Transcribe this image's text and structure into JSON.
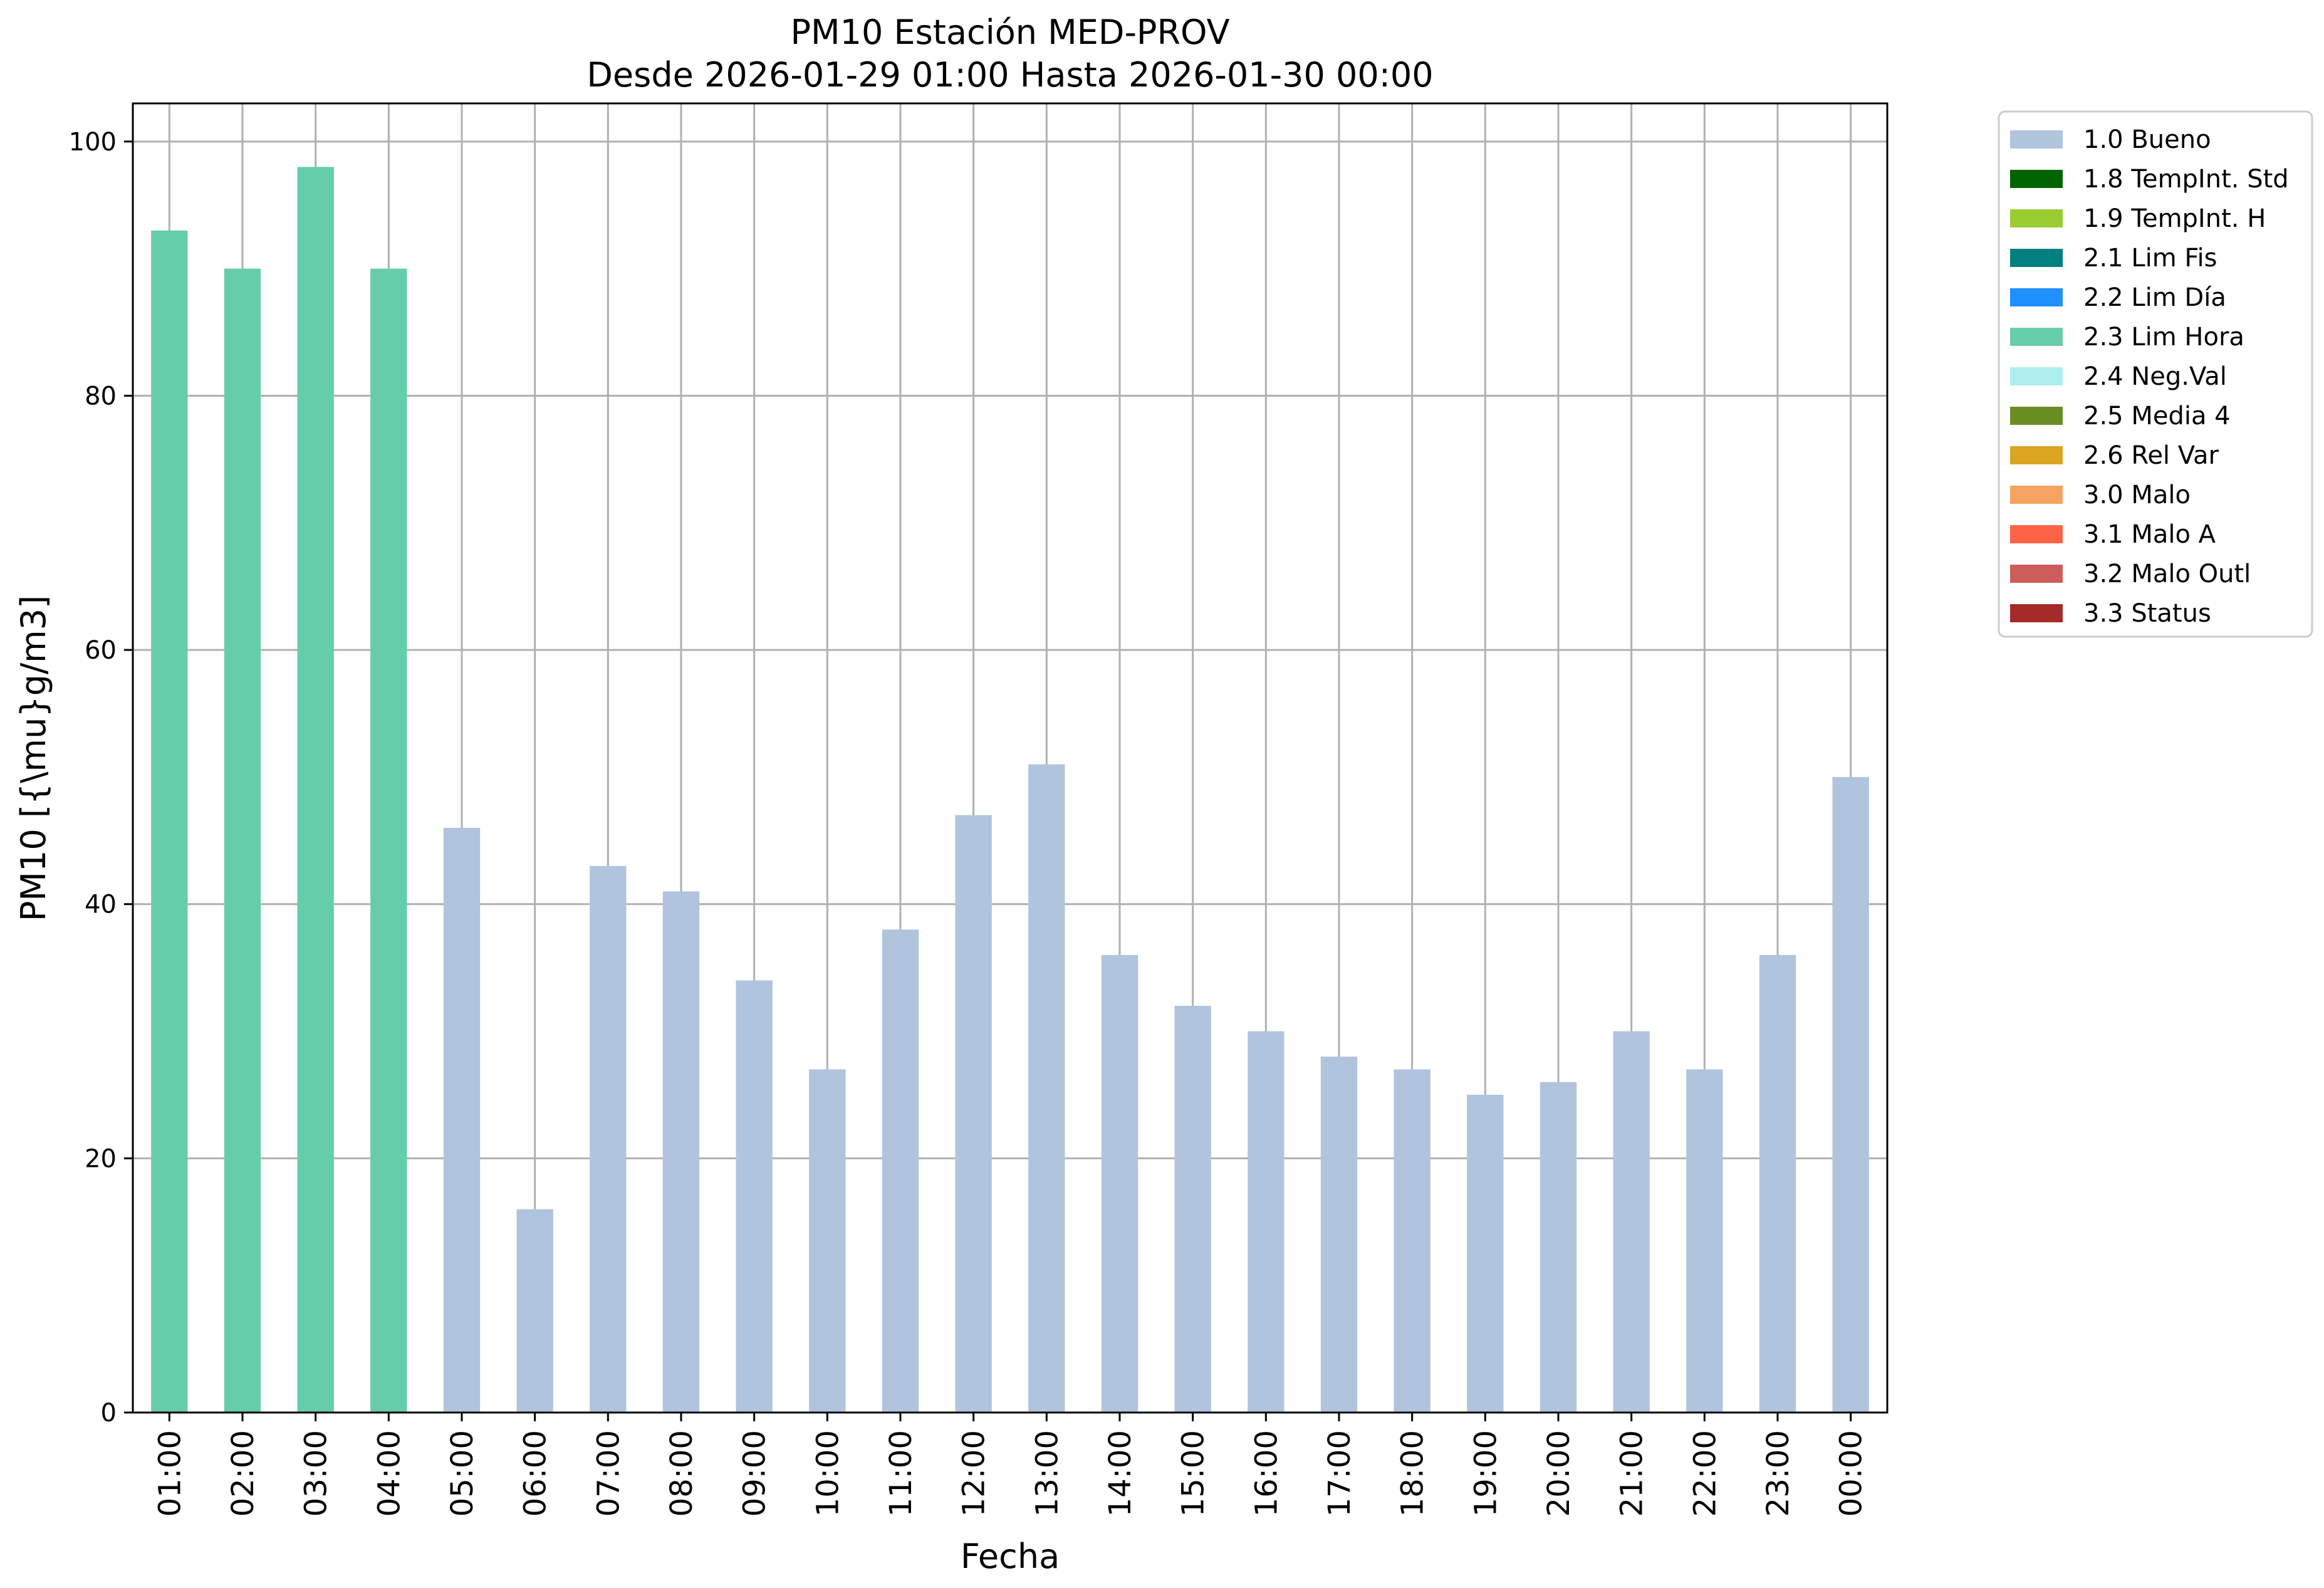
{
  "chart_data": {
    "type": "bar",
    "title": "PM10 Estación MED-PROV",
    "subtitle": "Desde 2026-01-29 01:00 Hasta 2026-01-30 00:00",
    "xlabel": "Fecha",
    "ylabel": "PM10 [{\\mu}g/m3]",
    "ylim": [
      0,
      103
    ],
    "yticks": [
      0,
      20,
      40,
      60,
      80,
      100
    ],
    "grid": true,
    "legend_position": "outside-top-right",
    "categories": [
      "01:00",
      "02:00",
      "03:00",
      "04:00",
      "05:00",
      "06:00",
      "07:00",
      "08:00",
      "09:00",
      "10:00",
      "11:00",
      "12:00",
      "13:00",
      "14:00",
      "15:00",
      "16:00",
      "17:00",
      "18:00",
      "19:00",
      "20:00",
      "21:00",
      "22:00",
      "23:00",
      "00:00"
    ],
    "values": [
      93,
      90,
      98,
      90,
      46,
      16,
      43,
      41,
      34,
      27,
      38,
      47,
      51,
      36,
      32,
      30,
      28,
      27,
      25,
      26,
      30,
      27,
      36,
      50
    ],
    "flags": [
      "2.3 Lim Hora",
      "2.3 Lim Hora",
      "2.3 Lim Hora",
      "2.3 Lim Hora",
      "1.0 Bueno",
      "1.0 Bueno",
      "1.0 Bueno",
      "1.0 Bueno",
      "1.0 Bueno",
      "1.0 Bueno",
      "1.0 Bueno",
      "1.0 Bueno",
      "1.0 Bueno",
      "1.0 Bueno",
      "1.0 Bueno",
      "1.0 Bueno",
      "1.0 Bueno",
      "1.0 Bueno",
      "1.0 Bueno",
      "1.0 Bueno",
      "1.0 Bueno",
      "1.0 Bueno",
      "1.0 Bueno",
      "1.0 Bueno"
    ],
    "legend": [
      {
        "label": "1.0 Bueno",
        "color": "#b0c4de"
      },
      {
        "label": "1.8 TempInt. Std",
        "color": "#006400"
      },
      {
        "label": "1.9 TempInt. H",
        "color": "#9acd32"
      },
      {
        "label": "2.1 Lim Fis",
        "color": "#008080"
      },
      {
        "label": "2.2 Lim Día",
        "color": "#1e90ff"
      },
      {
        "label": "2.3 Lim Hora",
        "color": "#66cdaa"
      },
      {
        "label": "2.4 Neg.Val",
        "color": "#afeeee"
      },
      {
        "label": "2.5 Media 4",
        "color": "#6b8e23"
      },
      {
        "label": "2.6 Rel Var",
        "color": "#daa520"
      },
      {
        "label": "3.0 Malo",
        "color": "#f4a460"
      },
      {
        "label": "3.1 Malo A",
        "color": "#ff6347"
      },
      {
        "label": "3.2 Malo Outl",
        "color": "#cd5c5c"
      },
      {
        "label": "3.3 Status",
        "color": "#a52a2a"
      }
    ]
  }
}
